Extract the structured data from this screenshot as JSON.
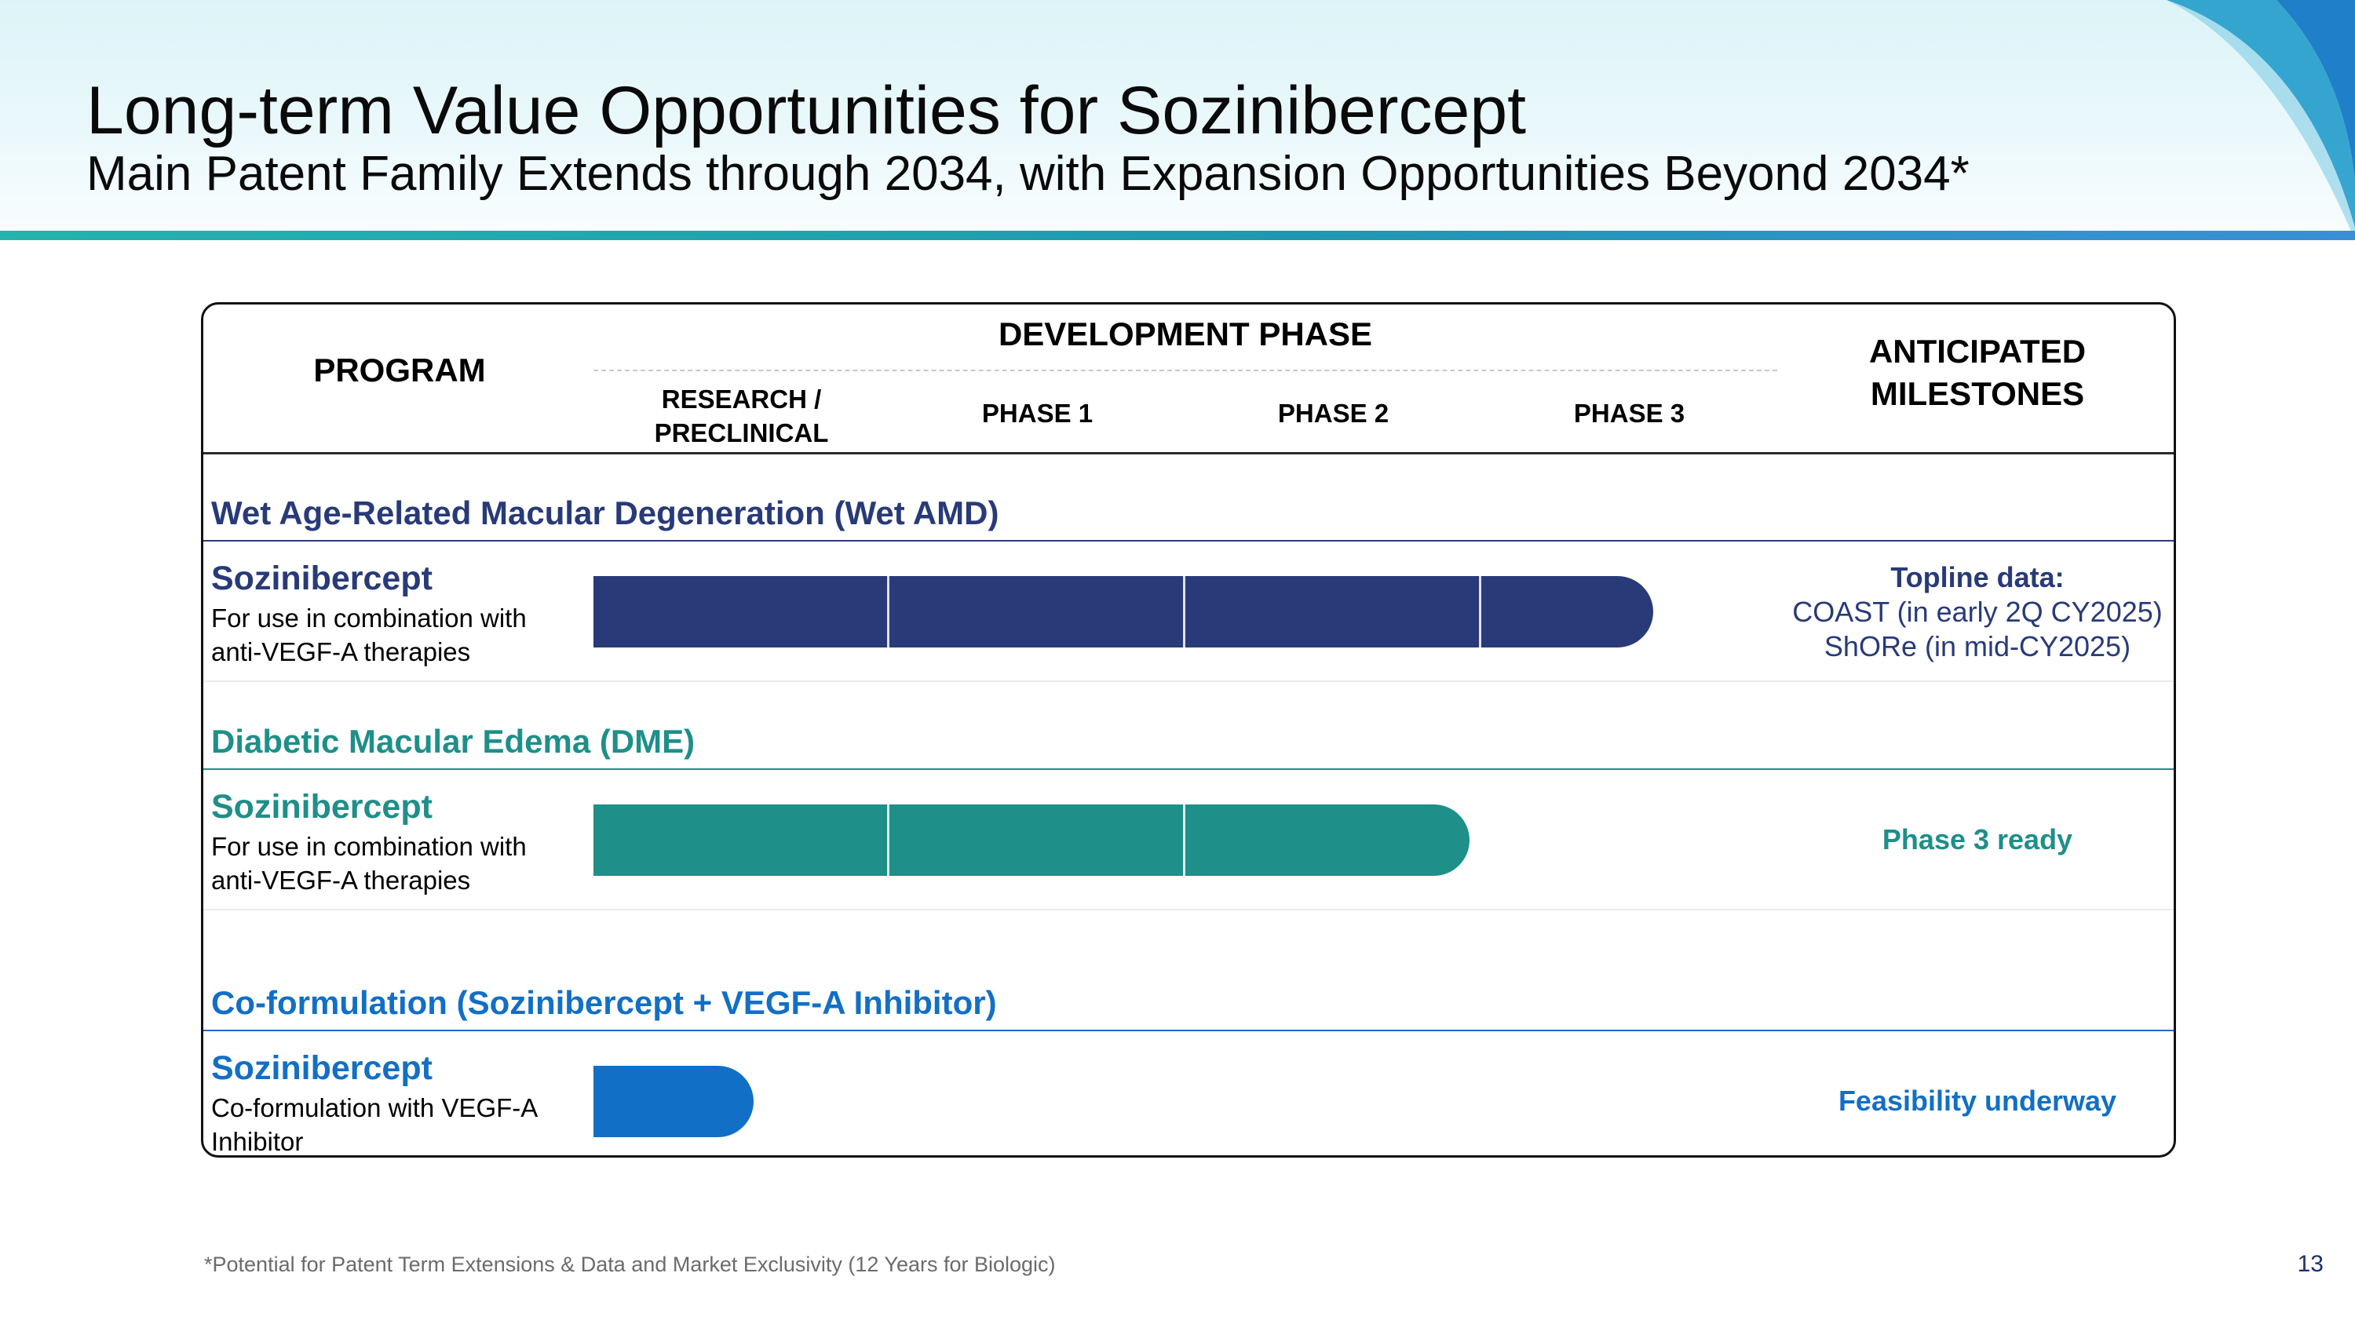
{
  "header": {
    "title": "Long-term Value Opportunities for Sozinibercept",
    "subtitle": "Main Patent Family Extends through 2034, with Expansion Opportunities Beyond 2034*"
  },
  "table": {
    "program_header": "PROGRAM",
    "development_phase_header": "DEVELOPMENT PHASE",
    "phases": [
      "RESEARCH /\nPRECLINICAL",
      "PHASE 1",
      "PHASE 2",
      "PHASE 3"
    ],
    "milestones_header": "ANTICIPATED\nMILESTONES"
  },
  "rows": [
    {
      "category": "Wet Age-Related Macular Degeneration (Wet AMD)",
      "program": "Sozinibercept",
      "description": "For use in combination with\nanti-VEGF-A therapies",
      "progress_phases": 3.58,
      "milestone_title": "Topline data:",
      "milestone_lines": [
        "COAST (in early 2Q CY2025)",
        "ShORe (in mid-CY2025)"
      ]
    },
    {
      "category": "Diabetic Macular Edema (DME)",
      "program": "Sozinibercept",
      "description": "For use in combination with\nanti-VEGF-A therapies",
      "progress_phases": 2.96,
      "milestone_title": "Phase 3 ready"
    },
    {
      "category": "Co-formulation (Sozinibercept + VEGF-A Inhibitor)",
      "program": "Sozinibercept",
      "description": "Co-formulation with VEGF-A\nInhibitor",
      "progress_phases": 0.54,
      "milestone_title": "Feasibility underway"
    }
  ],
  "colors": {
    "wet_amd": "#283a78",
    "dme": "#1e8f89",
    "coformulation": "#126fc6"
  },
  "footnote": "*Potential for Patent Term Extensions & Data and Market Exclusivity (12 Years for Biologic)",
  "page_number": "13"
}
